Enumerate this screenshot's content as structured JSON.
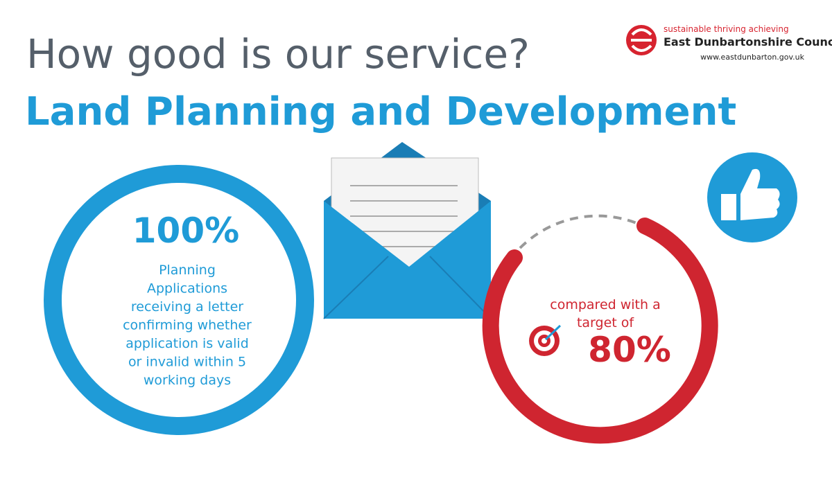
{
  "header": {
    "title": "How good is our service?",
    "subtitle": "Land Planning and Development"
  },
  "logo": {
    "tagline": "sustainable thriving achieving",
    "name": "East Dunbartonshire Council",
    "url": "www.eastdunbarton.gov.uk"
  },
  "result": {
    "value": "100%",
    "description_lines": [
      "Planning",
      "Applications",
      "receiving a letter",
      "confirming whether",
      "application is valid",
      "or invalid within 5",
      "working days"
    ]
  },
  "target": {
    "text_lines": [
      "compared with a",
      "target of"
    ],
    "value": "80%"
  }
}
